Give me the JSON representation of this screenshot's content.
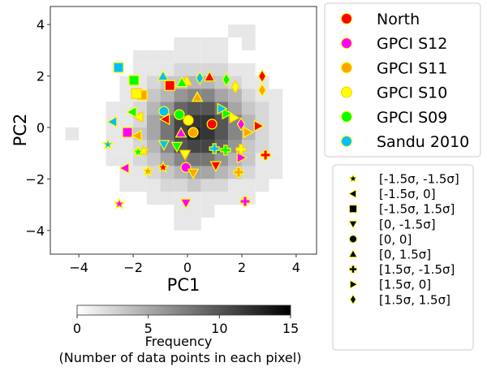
{
  "chart_data": {
    "type": "scatter",
    "xlabel": "PC1",
    "ylabel": "PC2",
    "xlim": [
      -5.05,
      4.75
    ],
    "ylim": [
      -4.92,
      4.7
    ],
    "xticks": [
      -4,
      -2,
      0,
      2,
      4
    ],
    "yticks": [
      -4,
      -2,
      0,
      2,
      4
    ],
    "xtick_labels": [
      "−4",
      "−2",
      "0",
      "2",
      "4"
    ],
    "ytick_labels": [
      "−4",
      "−2",
      "0",
      "2",
      "4"
    ],
    "grid": false,
    "background_histogram": {
      "type": "heatmap",
      "colormap": "gray_r",
      "bin_size": 0.5,
      "x_bin_centers": [
        -4.25,
        -3.75,
        -3.25,
        -2.75,
        -2.25,
        -1.75,
        -1.25,
        -0.75,
        -0.25,
        0.25,
        0.75,
        1.25,
        1.75,
        2.25,
        2.75,
        3.25,
        3.75,
        4.25
      ],
      "y_bin_centers": [
        3.75,
        3.25,
        2.75,
        2.25,
        1.75,
        1.25,
        0.75,
        0.25,
        -0.25,
        -0.75,
        -1.25,
        -1.75,
        -2.25,
        -2.75,
        -3.25,
        -3.75
      ],
      "counts": [
        [
          0,
          0,
          0,
          0,
          0,
          0,
          0,
          0,
          0,
          0,
          0,
          0,
          1,
          1,
          0,
          0,
          0,
          0
        ],
        [
          0,
          0,
          0,
          0,
          0,
          0,
          0,
          0,
          1,
          1,
          1,
          1,
          0,
          1,
          0,
          0,
          0,
          0
        ],
        [
          0,
          0,
          0,
          0,
          0,
          1,
          1,
          1,
          1,
          1,
          1,
          1,
          0,
          0,
          0,
          0,
          0,
          0
        ],
        [
          0,
          0,
          0,
          0,
          0,
          1,
          1,
          1,
          2,
          2,
          2,
          2,
          1,
          1,
          0,
          0,
          0,
          0
        ],
        [
          0,
          0,
          0,
          0,
          1,
          1,
          2,
          3,
          3,
          4,
          4,
          3,
          2,
          1,
          1,
          0,
          0,
          0
        ],
        [
          0,
          0,
          0,
          0,
          1,
          1,
          3,
          4,
          6,
          7,
          7,
          5,
          4,
          2,
          1,
          1,
          0,
          0
        ],
        [
          0,
          0,
          0,
          1,
          1,
          2,
          4,
          6,
          9,
          10,
          10,
          8,
          5,
          3,
          2,
          1,
          0,
          0
        ],
        [
          0,
          0,
          0,
          1,
          1,
          2,
          5,
          8,
          11,
          12,
          12,
          10,
          7,
          4,
          2,
          1,
          0,
          0
        ],
        [
          1,
          0,
          0,
          1,
          1,
          3,
          5,
          8,
          11,
          13,
          12,
          10,
          7,
          4,
          2,
          1,
          0,
          0
        ],
        [
          0,
          0,
          0,
          1,
          1,
          2,
          4,
          7,
          10,
          11,
          11,
          9,
          6,
          3,
          2,
          1,
          0,
          0
        ],
        [
          0,
          0,
          0,
          1,
          1,
          2,
          3,
          5,
          7,
          8,
          8,
          6,
          4,
          3,
          1,
          1,
          0,
          0
        ],
        [
          0,
          0,
          0,
          0,
          1,
          1,
          2,
          3,
          4,
          5,
          5,
          4,
          3,
          2,
          1,
          1,
          0,
          0
        ],
        [
          0,
          0,
          0,
          0,
          1,
          1,
          1,
          2,
          2,
          3,
          2,
          2,
          1,
          1,
          1,
          0,
          0,
          0
        ],
        [
          0,
          0,
          0,
          0,
          0,
          0,
          1,
          1,
          1,
          1,
          1,
          1,
          1,
          1,
          0,
          0,
          0,
          0
        ],
        [
          0,
          0,
          0,
          0,
          0,
          0,
          0,
          0,
          1,
          1,
          1,
          0,
          0,
          0,
          0,
          0,
          0,
          0
        ],
        [
          0,
          0,
          0,
          0,
          0,
          0,
          0,
          0,
          1,
          1,
          0,
          0,
          0,
          0,
          0,
          0,
          0,
          0
        ]
      ]
    },
    "colorbar": {
      "range": [
        0,
        15
      ],
      "ticks": [
        0,
        5,
        10,
        15
      ],
      "tick_labels": [
        "0",
        "5",
        "10",
        "15"
      ],
      "label": "Frequency",
      "sublabel": "(Number of data points in each pixel)",
      "placement": "bottom"
    },
    "conditions": [
      {
        "label": "[-1.5σ, -1.5σ]",
        "marker": "star"
      },
      {
        "label": "[-1.5σ, 0]",
        "marker": "triangle-left"
      },
      {
        "label": "[-1.5σ, 1.5σ]",
        "marker": "square"
      },
      {
        "label": "[0, -1.5σ]",
        "marker": "triangle-down"
      },
      {
        "label": "[0, 0]",
        "marker": "circle"
      },
      {
        "label": "[0, 1.5σ]",
        "marker": "triangle-up"
      },
      {
        "label": "[1.5σ, -1.5σ]",
        "marker": "plus"
      },
      {
        "label": "[1.5σ, 0]",
        "marker": "triangle-right"
      },
      {
        "label": "[1.5σ, 1.5σ]",
        "marker": "diamond"
      }
    ],
    "series": [
      {
        "name": "North",
        "color": "#ff0000",
        "edge": "#ffff00",
        "points": [
          [
            -0.9,
            -1.55
          ],
          [
            -0.81,
            0.32
          ],
          [
            -0.65,
            1.63
          ],
          [
            1.04,
            -1.48
          ],
          [
            0.9,
            0.13
          ],
          [
            0.81,
            1.96
          ],
          [
            2.87,
            -1.07
          ],
          [
            2.6,
            0.06
          ],
          [
            2.75,
            1.99
          ]
        ]
      },
      {
        "name": "GPCI S12",
        "color": "#ff00ff",
        "edge": "#ffff00",
        "points": [
          [
            -2.51,
            -2.97
          ],
          [
            -2.3,
            -1.58
          ],
          [
            -2.21,
            -0.19
          ],
          [
            -0.06,
            -2.93
          ],
          [
            -0.06,
            -1.55
          ],
          [
            -0.24,
            -0.22
          ],
          [
            2.12,
            -2.87
          ],
          [
            1.97,
            -1.17
          ],
          [
            1.97,
            0.13
          ]
        ]
      },
      {
        "name": "GPCI S11",
        "color": "#ffa500",
        "edge": "#ffff00",
        "points": [
          [
            -1.46,
            -1.7
          ],
          [
            -1.85,
            -0.32
          ],
          [
            -1.67,
            1.26
          ],
          [
            0.21,
            -1.77
          ],
          [
            0.21,
            -0.19
          ],
          [
            0.36,
            1.17
          ],
          [
            1.88,
            -1.74
          ],
          [
            2.21,
            -0.19
          ],
          [
            2.75,
            1.45
          ]
        ]
      },
      {
        "name": "GPCI S10",
        "color": "#ffff00",
        "edge": "#ffd000",
        "points": [
          [
            -1.61,
            -0.91
          ],
          [
            -1.79,
            0.41
          ],
          [
            -1.88,
            1.32
          ],
          [
            -0.09,
            -1.04
          ],
          [
            0.03,
            0.28
          ],
          [
            -0.03,
            1.8
          ],
          [
            1.97,
            -0.85
          ],
          [
            1.7,
            0.38
          ],
          [
            1.76,
            1.58
          ]
        ]
      },
      {
        "name": "GPCI S09",
        "color": "#00ff00",
        "edge": "#ffff00",
        "points": [
          [
            -1.82,
            -0.95
          ],
          [
            -2.03,
            0.6
          ],
          [
            -1.97,
            1.83
          ],
          [
            -0.39,
            -0.73
          ],
          [
            -0.3,
            0.5
          ],
          [
            -0.21,
            1.74
          ],
          [
            1.4,
            -0.88
          ],
          [
            1.43,
            0.54
          ],
          [
            1.43,
            1.86
          ]
        ]
      },
      {
        "name": "Sandu 2010",
        "color": "#00bfff",
        "edge": "#ffff00",
        "points": [
          [
            -2.93,
            -0.66
          ],
          [
            -2.75,
            0.22
          ],
          [
            -2.54,
            2.33
          ],
          [
            -0.87,
            -0.66
          ],
          [
            -0.87,
            0.63
          ],
          [
            -0.9,
            1.99
          ],
          [
            0.99,
            -0.82
          ],
          [
            1.25,
            0.73
          ],
          [
            0.45,
            1.92
          ]
        ]
      }
    ],
    "legend_placement": "right"
  }
}
